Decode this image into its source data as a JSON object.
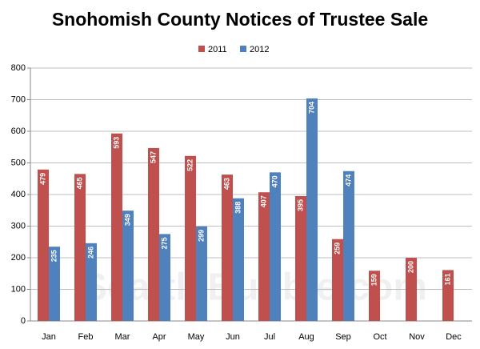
{
  "chart_data": {
    "type": "bar",
    "title": "Snohomish County Notices of Trustee Sale",
    "watermark": "SeattleBubble.com",
    "categories": [
      "Jan",
      "Feb",
      "Mar",
      "Apr",
      "May",
      "Jun",
      "Jul",
      "Aug",
      "Sep",
      "Oct",
      "Nov",
      "Dec"
    ],
    "series": [
      {
        "name": "2011",
        "color": "#c0504d",
        "values": [
          479,
          465,
          593,
          547,
          522,
          463,
          407,
          395,
          259,
          159,
          200,
          161
        ]
      },
      {
        "name": "2012",
        "color": "#4f81bd",
        "values": [
          235,
          246,
          349,
          275,
          299,
          388,
          470,
          704,
          474,
          null,
          null,
          null
        ]
      }
    ],
    "ylim": [
      0,
      800
    ],
    "yticks": [
      0,
      100,
      200,
      300,
      400,
      500,
      600,
      700,
      800
    ],
    "grid": true,
    "legend": "top"
  }
}
